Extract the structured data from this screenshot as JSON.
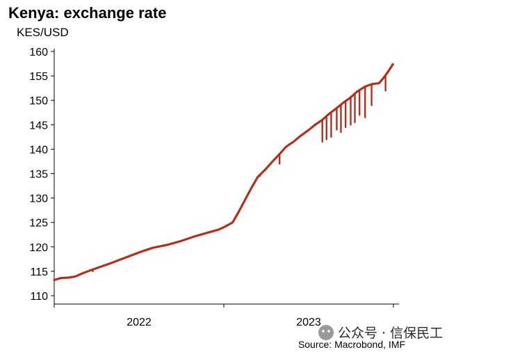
{
  "chart_data": {
    "type": "line",
    "title": "Kenya: exchange rate",
    "ylabel": "KES/USD",
    "xlabel": "",
    "ylim": [
      110,
      160
    ],
    "yticks": [
      110,
      115,
      120,
      125,
      130,
      135,
      140,
      145,
      150,
      155,
      160
    ],
    "x_period_labels": [
      "2022",
      "2023"
    ],
    "xlim": [
      "2022-01-01",
      "2024-01-01"
    ],
    "grid": false,
    "legend": "none",
    "line_color": "#b0301e",
    "series": [
      {
        "x": [
          "2022-01-01",
          "2022-01-15",
          "2022-02-01",
          "2022-02-15",
          "2022-03-01",
          "2022-03-20",
          "2022-04-01",
          "2022-05-01",
          "2022-06-01",
          "2022-07-01",
          "2022-08-01",
          "2022-09-01",
          "2022-10-01",
          "2022-11-01",
          "2022-12-01",
          "2022-12-20",
          "2023-01-01",
          "2023-01-20",
          "2023-02-01",
          "2023-02-15",
          "2023-03-01",
          "2023-03-15",
          "2023-04-01",
          "2023-04-15",
          "2023-05-01",
          "2023-05-15",
          "2023-06-01",
          "2023-06-15",
          "2023-07-01",
          "2023-07-15",
          "2023-08-01",
          "2023-08-15",
          "2023-09-01",
          "2023-09-15",
          "2023-10-01",
          "2023-10-15",
          "2023-11-01",
          "2023-11-15",
          "2023-12-01",
          "2023-12-10",
          "2023-12-20",
          "2023-12-31"
        ],
        "values": [
          113.2,
          113.6,
          113.7,
          113.9,
          114.5,
          115.2,
          115.6,
          116.6,
          117.7,
          118.8,
          119.8,
          120.4,
          121.2,
          122.2,
          123.0,
          123.5,
          124.0,
          125.0,
          127.0,
          129.5,
          132.0,
          134.3,
          135.9,
          137.4,
          139.0,
          140.5,
          141.6,
          142.7,
          143.8,
          144.9,
          146.0,
          147.2,
          148.4,
          149.5,
          150.6,
          151.8,
          152.8,
          153.3,
          153.5,
          154.5,
          155.8,
          157.4
        ]
      }
    ],
    "dips": [
      {
        "x": "2022-03-25",
        "y": 115.0
      },
      {
        "x": "2023-03-20",
        "y": 134.5
      },
      {
        "x": "2023-05-01",
        "y": 137.0
      },
      {
        "x": "2023-08-01",
        "y": 141.5
      },
      {
        "x": "2023-08-10",
        "y": 142.0
      },
      {
        "x": "2023-08-20",
        "y": 142.5
      },
      {
        "x": "2023-09-01",
        "y": 144.0
      },
      {
        "x": "2023-09-10",
        "y": 143.5
      },
      {
        "x": "2023-09-20",
        "y": 144.5
      },
      {
        "x": "2023-10-01",
        "y": 145.0
      },
      {
        "x": "2023-10-10",
        "y": 145.5
      },
      {
        "x": "2023-10-20",
        "y": 147.0
      },
      {
        "x": "2023-11-01",
        "y": 146.5
      },
      {
        "x": "2023-11-15",
        "y": 149.0
      },
      {
        "x": "2023-12-15",
        "y": 152.0
      }
    ]
  },
  "source": "Source: Macrobond, IMF",
  "watermark": "公众号 · 信保民工"
}
